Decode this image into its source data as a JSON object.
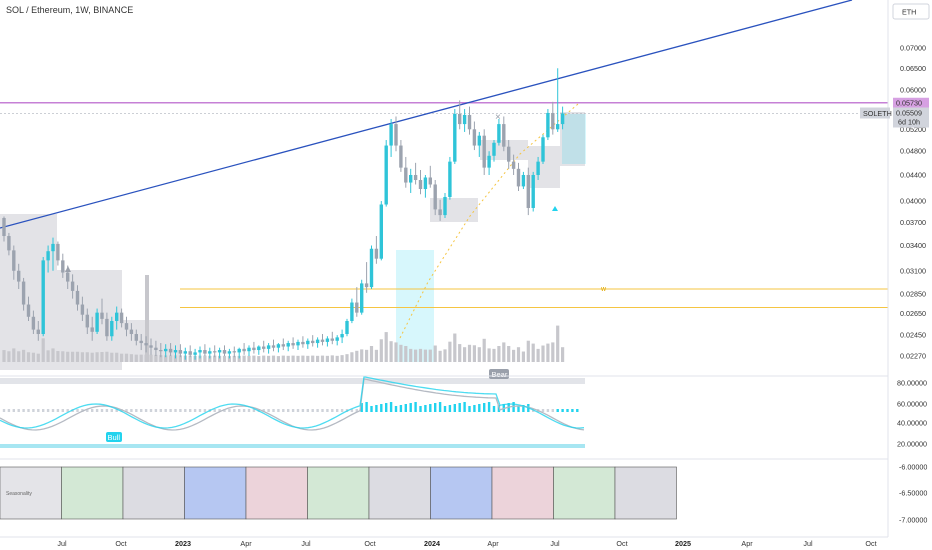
{
  "header": {
    "title": "SOL / Ethereum, 1W, BINANCE",
    "currency_button": "ETH"
  },
  "colors": {
    "trendline": "#2a52be",
    "resistance": "#c680d6",
    "support": "#f5c542",
    "candle": "#2fc4d8",
    "volume": "#c7c7cc",
    "zone": "#d9d9df",
    "accent_cyan": "#22d3ee"
  },
  "price_axis": {
    "labels": [
      "0.07000",
      "0.06500",
      "0.06000",
      "0.05200",
      "0.04800",
      "0.04400",
      "0.04000",
      "0.03700",
      "0.03400",
      "0.03100",
      "0.02850",
      "0.02650",
      "0.02450",
      "0.02270"
    ],
    "current_price_label": "0.05730",
    "symbol_label": "SOLETH",
    "last_price": "0.05509",
    "countdown": "6d 10h"
  },
  "oscillator_axis": {
    "labels": [
      "80.00000",
      "60.00000",
      "40.00000",
      "20.00000"
    ]
  },
  "lower_pane_axis": {
    "labels": [
      "-6.00000",
      "-6.50000",
      "-7.00000"
    ],
    "first_cell_text": "Seasonality"
  },
  "time_axis": {
    "labels": [
      {
        "text": "Jul",
        "bold": false
      },
      {
        "text": "Oct",
        "bold": false
      },
      {
        "text": "2023",
        "bold": true
      },
      {
        "text": "Apr",
        "bold": false
      },
      {
        "text": "Jul",
        "bold": false
      },
      {
        "text": "Oct",
        "bold": false
      },
      {
        "text": "2024",
        "bold": true
      },
      {
        "text": "Apr",
        "bold": false
      },
      {
        "text": "Jul",
        "bold": false
      },
      {
        "text": "Oct",
        "bold": false
      },
      {
        "text": "2025",
        "bold": true
      },
      {
        "text": "Apr",
        "bold": false
      },
      {
        "text": "Jul",
        "bold": false
      },
      {
        "text": "Oct",
        "bold": false
      }
    ]
  },
  "annotations": {
    "bear_label": "Bear",
    "bull_label": "Bull",
    "w_marker": "w"
  },
  "seasonality": {
    "cell_colors": [
      "#e4e4e8",
      "#d3e8d5",
      "#dcdce2",
      "#b6c7f2",
      "#ecd3da",
      "#d3e8d5",
      "#dcdce2",
      "#b6c7f2",
      "#ecd3da",
      "#d3e8d5",
      "#dcdce2"
    ]
  },
  "chart_data": {
    "type": "candlestick",
    "title": "SOL / Ethereum, 1W, BINANCE",
    "x_range": [
      "2022-04",
      "2025-11"
    ],
    "y_range": [
      0.0222,
      0.0755
    ],
    "levels": {
      "resistance": 0.0573,
      "support_upper": 0.029,
      "support_lower": 0.0271,
      "last": 0.05509
    },
    "series": [
      {
        "name": "SOLETH",
        "ohlc": [
          [
            0.0376,
            0.0378,
            0.0345,
            0.0352
          ],
          [
            0.0352,
            0.0356,
            0.0328,
            0.0334
          ],
          [
            0.0334,
            0.034,
            0.03,
            0.031
          ],
          [
            0.031,
            0.0318,
            0.029,
            0.0298
          ],
          [
            0.0298,
            0.0302,
            0.0268,
            0.0274
          ],
          [
            0.0274,
            0.0282,
            0.0258,
            0.0262
          ],
          [
            0.0262,
            0.0268,
            0.0246,
            0.025
          ],
          [
            0.025,
            0.0258,
            0.024,
            0.0246
          ],
          [
            0.0246,
            0.0326,
            0.0244,
            0.0322
          ],
          [
            0.0322,
            0.034,
            0.0308,
            0.0333
          ],
          [
            0.0333,
            0.035,
            0.031,
            0.0342
          ],
          [
            0.0342,
            0.0345,
            0.0316,
            0.0322
          ],
          [
            0.0322,
            0.033,
            0.0302,
            0.0308
          ],
          [
            0.0308,
            0.0316,
            0.029,
            0.0298
          ],
          [
            0.0298,
            0.0306,
            0.028,
            0.0288
          ],
          [
            0.0288,
            0.0294,
            0.0268,
            0.0274
          ],
          [
            0.0274,
            0.0282,
            0.0258,
            0.0264
          ],
          [
            0.0264,
            0.027,
            0.0246,
            0.0252
          ],
          [
            0.0252,
            0.0262,
            0.024,
            0.0248
          ],
          [
            0.0248,
            0.027,
            0.0246,
            0.0266
          ],
          [
            0.0266,
            0.028,
            0.0255,
            0.026
          ],
          [
            0.026,
            0.0266,
            0.024,
            0.0244
          ],
          [
            0.0244,
            0.0262,
            0.024,
            0.0258
          ],
          [
            0.0258,
            0.0272,
            0.025,
            0.0266
          ],
          [
            0.0266,
            0.027,
            0.0252,
            0.0256
          ],
          [
            0.0256,
            0.0262,
            0.0244,
            0.025
          ],
          [
            0.025,
            0.0256,
            0.024,
            0.0246
          ],
          [
            0.0246,
            0.025,
            0.0236,
            0.024
          ],
          [
            0.024,
            0.0246,
            0.0232,
            0.0238
          ],
          [
            0.0238,
            0.0244,
            0.023,
            0.0236
          ],
          [
            0.0236,
            0.0242,
            0.0228,
            0.0234
          ],
          [
            0.0234,
            0.024,
            0.0227,
            0.0232
          ],
          [
            0.0232,
            0.0238,
            0.0226,
            0.0231
          ],
          [
            0.0231,
            0.0237,
            0.0226,
            0.0233
          ],
          [
            0.0233,
            0.0238,
            0.0227,
            0.023
          ],
          [
            0.023,
            0.0236,
            0.0225,
            0.0232
          ],
          [
            0.0232,
            0.0237,
            0.0226,
            0.0229
          ],
          [
            0.0229,
            0.0234,
            0.0224,
            0.0231
          ],
          [
            0.0231,
            0.0236,
            0.0226,
            0.0228
          ],
          [
            0.0228,
            0.0233,
            0.0224,
            0.023
          ],
          [
            0.023,
            0.0235,
            0.0225,
            0.0232
          ],
          [
            0.0232,
            0.0237,
            0.0227,
            0.0229
          ],
          [
            0.0229,
            0.0234,
            0.0225,
            0.0231
          ],
          [
            0.0231,
            0.0236,
            0.0226,
            0.023
          ],
          [
            0.023,
            0.0234,
            0.0225,
            0.0232
          ],
          [
            0.0232,
            0.0236,
            0.0227,
            0.0229
          ],
          [
            0.0229,
            0.0233,
            0.0225,
            0.0231
          ],
          [
            0.0231,
            0.0235,
            0.0226,
            0.023
          ],
          [
            0.023,
            0.0234,
            0.0225,
            0.0233
          ],
          [
            0.0233,
            0.0238,
            0.0228,
            0.0231
          ],
          [
            0.0231,
            0.0236,
            0.0227,
            0.0234
          ],
          [
            0.0234,
            0.0239,
            0.0229,
            0.0232
          ],
          [
            0.0232,
            0.0236,
            0.0228,
            0.0235
          ],
          [
            0.0235,
            0.024,
            0.023,
            0.0233
          ],
          [
            0.0233,
            0.0238,
            0.0229,
            0.0236
          ],
          [
            0.0236,
            0.0241,
            0.0231,
            0.0234
          ],
          [
            0.0234,
            0.0238,
            0.023,
            0.0237
          ],
          [
            0.0237,
            0.0242,
            0.0232,
            0.0235
          ],
          [
            0.0235,
            0.024,
            0.0231,
            0.0238
          ],
          [
            0.0238,
            0.0243,
            0.0233,
            0.0236
          ],
          [
            0.0236,
            0.0241,
            0.0232,
            0.0239
          ],
          [
            0.0239,
            0.0244,
            0.0234,
            0.0237
          ],
          [
            0.0237,
            0.0242,
            0.0233,
            0.024
          ],
          [
            0.024,
            0.0245,
            0.0235,
            0.0238
          ],
          [
            0.0238,
            0.0243,
            0.0234,
            0.0241
          ],
          [
            0.0241,
            0.0246,
            0.0236,
            0.0239
          ],
          [
            0.0239,
            0.0244,
            0.0235,
            0.0242
          ],
          [
            0.0242,
            0.0248,
            0.0237,
            0.024
          ],
          [
            0.024,
            0.0245,
            0.0236,
            0.0243
          ],
          [
            0.0243,
            0.025,
            0.0238,
            0.0246
          ],
          [
            0.0246,
            0.026,
            0.0244,
            0.0258
          ],
          [
            0.0258,
            0.028,
            0.0256,
            0.0276
          ],
          [
            0.0276,
            0.0292,
            0.0262,
            0.0266
          ],
          [
            0.0266,
            0.03,
            0.0264,
            0.0296
          ],
          [
            0.0296,
            0.032,
            0.0286,
            0.0292
          ],
          [
            0.0292,
            0.034,
            0.029,
            0.0336
          ],
          [
            0.0336,
            0.0352,
            0.0318,
            0.0324
          ],
          [
            0.0324,
            0.04,
            0.0322,
            0.0395
          ],
          [
            0.0395,
            0.05,
            0.0392,
            0.049
          ],
          [
            0.049,
            0.054,
            0.047,
            0.053
          ],
          [
            0.053,
            0.0545,
            0.048,
            0.049
          ],
          [
            0.049,
            0.05,
            0.0445,
            0.0452
          ],
          [
            0.0452,
            0.047,
            0.042,
            0.0428
          ],
          [
            0.0428,
            0.045,
            0.0412,
            0.044
          ],
          [
            0.044,
            0.046,
            0.0425,
            0.0432
          ],
          [
            0.0432,
            0.0448,
            0.041,
            0.0418
          ],
          [
            0.0418,
            0.044,
            0.0405,
            0.0436
          ],
          [
            0.0436,
            0.0455,
            0.042,
            0.0425
          ],
          [
            0.0425,
            0.0432,
            0.038,
            0.0388
          ],
          [
            0.0388,
            0.0402,
            0.0372,
            0.038
          ],
          [
            0.038,
            0.0412,
            0.0376,
            0.0406
          ],
          [
            0.0406,
            0.047,
            0.0402,
            0.0462
          ],
          [
            0.0462,
            0.056,
            0.0458,
            0.055
          ],
          [
            0.055,
            0.0578,
            0.052,
            0.053
          ],
          [
            0.053,
            0.056,
            0.0515,
            0.0548
          ],
          [
            0.0548,
            0.0565,
            0.051,
            0.052
          ],
          [
            0.052,
            0.0535,
            0.0482,
            0.049
          ],
          [
            0.049,
            0.0515,
            0.047,
            0.0508
          ],
          [
            0.0508,
            0.052,
            0.044,
            0.0452
          ],
          [
            0.0452,
            0.048,
            0.044,
            0.0472
          ],
          [
            0.0472,
            0.05,
            0.0462,
            0.0495
          ],
          [
            0.0495,
            0.054,
            0.049,
            0.053
          ],
          [
            0.053,
            0.0545,
            0.048,
            0.0488
          ],
          [
            0.0488,
            0.05,
            0.045,
            0.0462
          ],
          [
            0.0462,
            0.0474,
            0.044,
            0.045
          ],
          [
            0.045,
            0.046,
            0.0415,
            0.0422
          ],
          [
            0.0422,
            0.0445,
            0.0418,
            0.044
          ],
          [
            0.044,
            0.0452,
            0.038,
            0.039
          ],
          [
            0.039,
            0.0445,
            0.0385,
            0.044
          ],
          [
            0.044,
            0.047,
            0.0432,
            0.0462
          ],
          [
            0.0462,
            0.051,
            0.0458,
            0.0505
          ],
          [
            0.0505,
            0.056,
            0.05,
            0.0552
          ],
          [
            0.0552,
            0.0575,
            0.051,
            0.052
          ],
          [
            0.052,
            0.065,
            0.0515,
            0.053
          ],
          [
            0.053,
            0.0565,
            0.052,
            0.0551
          ]
        ]
      }
    ]
  }
}
